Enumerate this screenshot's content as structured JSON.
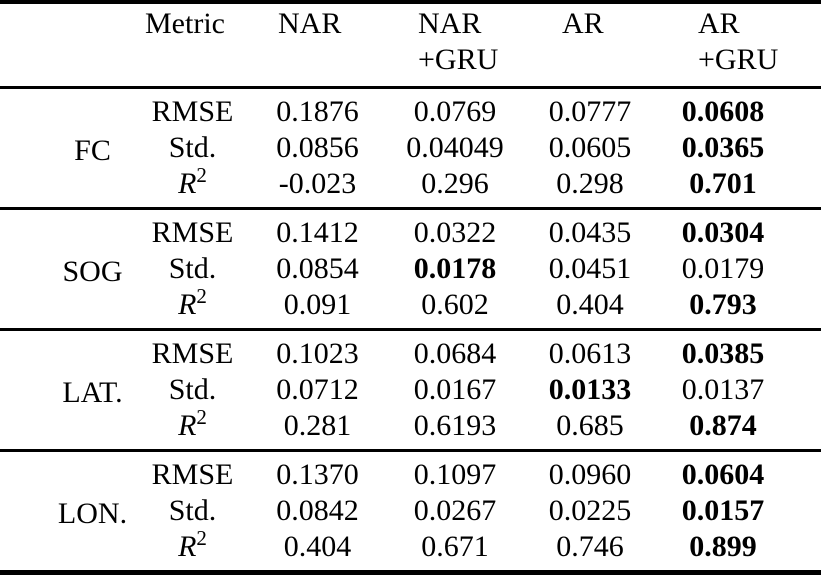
{
  "table": {
    "title_hint": "Comparison of NAR, NAR+GRU, AR and AR+GRU models",
    "colors": {
      "text": "#000000",
      "background": "#ffffff",
      "rule": "#000000"
    },
    "header": {
      "metric_label": "Metric",
      "columns": [
        {
          "line1": "NAR",
          "line2": ""
        },
        {
          "line1": "NAR",
          "line2": "+GRU"
        },
        {
          "line1": "AR",
          "line2": ""
        },
        {
          "line1": "AR",
          "line2": "+GRU"
        }
      ]
    },
    "groups": [
      {
        "label": "FC",
        "rows": [
          {
            "metric": "RMSE",
            "sup": "",
            "values": [
              "0.1876",
              "0.0769",
              "0.0777",
              "0.0608"
            ],
            "bold": [
              false,
              false,
              false,
              true
            ]
          },
          {
            "metric": "Std.",
            "sup": "",
            "values": [
              "0.0856",
              "0.04049",
              "0.0605",
              "0.0365"
            ],
            "bold": [
              false,
              false,
              false,
              true
            ]
          },
          {
            "metric": "R",
            "sup": "2",
            "values": [
              "-0.023",
              "0.296",
              "0.298",
              "0.701"
            ],
            "bold": [
              false,
              false,
              false,
              true
            ]
          }
        ]
      },
      {
        "label": "SOG",
        "rows": [
          {
            "metric": "RMSE",
            "sup": "",
            "values": [
              "0.1412",
              "0.0322",
              "0.0435",
              "0.0304"
            ],
            "bold": [
              false,
              false,
              false,
              true
            ]
          },
          {
            "metric": "Std.",
            "sup": "",
            "values": [
              "0.0854",
              "0.0178",
              "0.0451",
              "0.0179"
            ],
            "bold": [
              false,
              true,
              false,
              false
            ]
          },
          {
            "metric": "R",
            "sup": "2",
            "values": [
              "0.091",
              "0.602",
              "0.404",
              "0.793"
            ],
            "bold": [
              false,
              false,
              false,
              true
            ]
          }
        ]
      },
      {
        "label": "LAT.",
        "rows": [
          {
            "metric": "RMSE",
            "sup": "",
            "values": [
              "0.1023",
              "0.0684",
              "0.0613",
              "0.0385"
            ],
            "bold": [
              false,
              false,
              false,
              true
            ]
          },
          {
            "metric": "Std.",
            "sup": "",
            "values": [
              "0.0712",
              "0.0167",
              "0.0133",
              "0.0137"
            ],
            "bold": [
              false,
              false,
              true,
              false
            ]
          },
          {
            "metric": "R",
            "sup": "2",
            "values": [
              "0.281",
              "0.6193",
              "0.685",
              "0.874"
            ],
            "bold": [
              false,
              false,
              false,
              true
            ]
          }
        ]
      },
      {
        "label": "LON.",
        "rows": [
          {
            "metric": "RMSE",
            "sup": "",
            "values": [
              "0.1370",
              "0.1097",
              "0.0960",
              "0.0604"
            ],
            "bold": [
              false,
              false,
              false,
              true
            ]
          },
          {
            "metric": "Std.",
            "sup": "",
            "values": [
              "0.0842",
              "0.0267",
              "0.0225",
              "0.0157"
            ],
            "bold": [
              false,
              false,
              false,
              true
            ]
          },
          {
            "metric": "R",
            "sup": "2",
            "values": [
              "0.404",
              "0.671",
              "0.746",
              "0.899"
            ],
            "bold": [
              false,
              false,
              false,
              true
            ]
          }
        ]
      }
    ]
  }
}
